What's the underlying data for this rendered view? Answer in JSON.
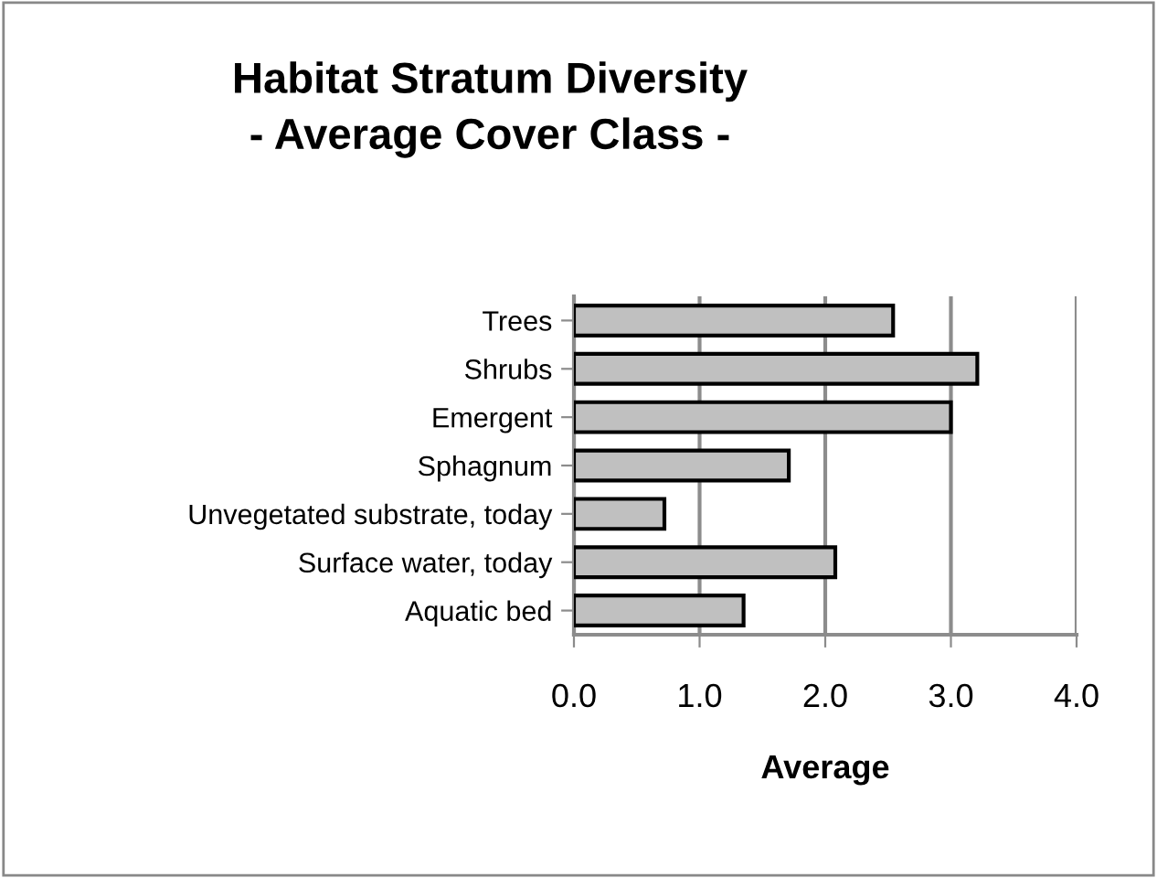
{
  "chart_data": {
    "type": "bar",
    "orientation": "horizontal",
    "title": "Habitat Stratum Diversity\n- Average Cover Class -",
    "xlabel": "Average",
    "categories": [
      "Trees",
      "Shrubs",
      "Emergent",
      "Sphagnum",
      "Unvegetated substrate, today",
      "Surface water, today",
      "Aquatic bed"
    ],
    "values": [
      2.54,
      3.21,
      3.0,
      1.71,
      0.72,
      2.08,
      1.35
    ],
    "color": "#c0c0c0",
    "xlim": [
      0,
      4
    ],
    "xticks": [
      {
        "value": 0,
        "label": "0.0"
      },
      {
        "value": 1,
        "label": "1.0"
      },
      {
        "value": 2,
        "label": "2.0"
      },
      {
        "value": 3,
        "label": "3.0"
      },
      {
        "value": 4,
        "label": "4.0"
      }
    ],
    "grid": "x",
    "legend": false
  }
}
